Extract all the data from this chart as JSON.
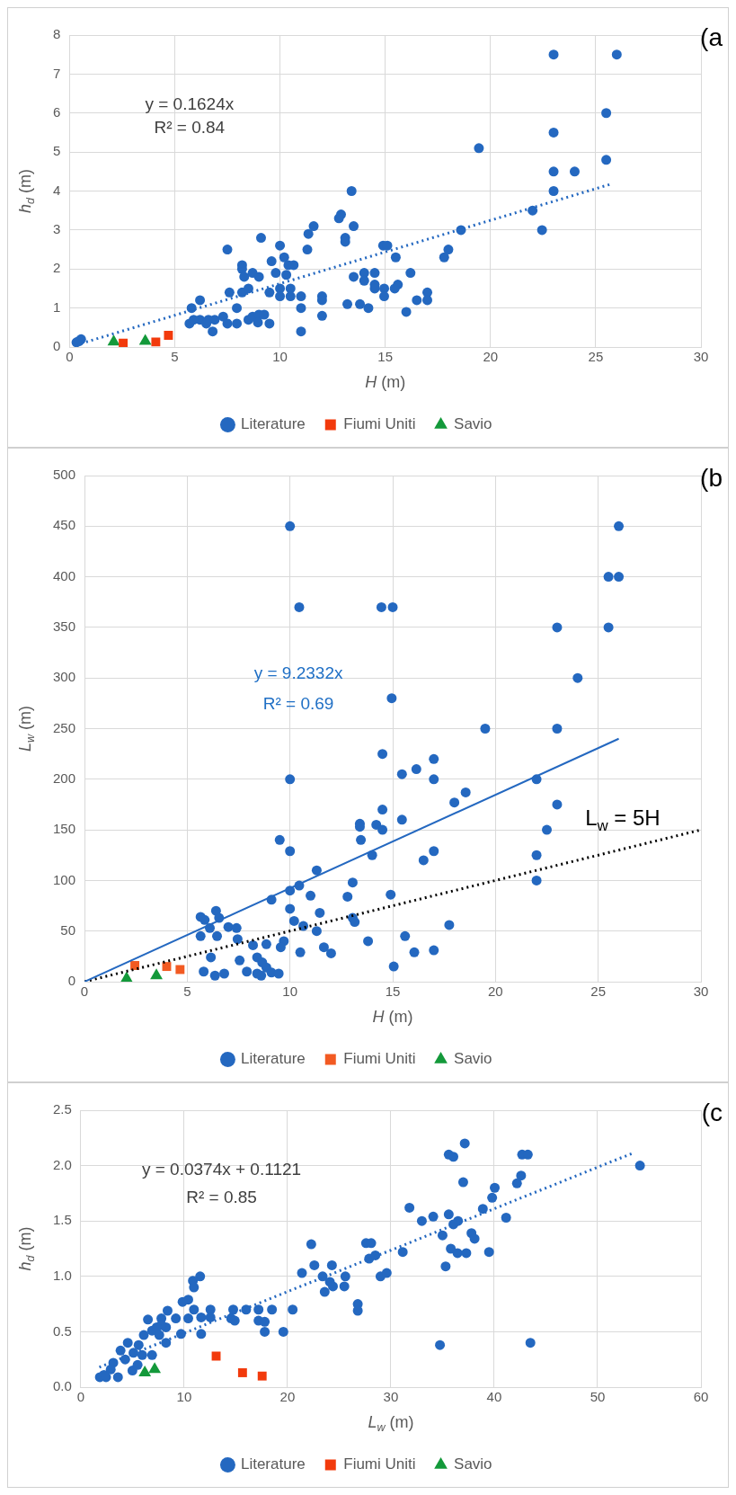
{
  "chart_data": [
    {
      "type": "scatter",
      "xlabel": "H (m)",
      "ylabel": "h$_{d}$ (m)",
      "xlim": [
        0,
        30
      ],
      "xticks": [
        0,
        5,
        10,
        15,
        20,
        25,
        30
      ],
      "ylim": [
        0,
        8
      ],
      "yticks": [
        0,
        1,
        2,
        3,
        4,
        5,
        6,
        7,
        8
      ],
      "grid": true,
      "legend": "bottom",
      "annotations": [
        "(a",
        "y = 0.1624x",
        "R² = 0.84"
      ],
      "series": [
        {
          "name": "Literature",
          "color": "#2468c0",
          "marker": "circle",
          "x": [
            23,
            26,
            25.5,
            23,
            19.45,
            25.5,
            23,
            24,
            23,
            13.4,
            22,
            22.45,
            18.6,
            12.9,
            12.8,
            13.1,
            13.1,
            13.5,
            11.6,
            11.35,
            11.3,
            9.1,
            7.5,
            10,
            14.9,
            15.1,
            18,
            17.8,
            15.5,
            10.2,
            9.6,
            8.2,
            8.2,
            10.4,
            10.65,
            8.3,
            8.7,
            9.0,
            9.8,
            10.3,
            14.0,
            14.5,
            16.2,
            13.5,
            14.0,
            14.5,
            14.5,
            14.95,
            15.6,
            15.45,
            7.6,
            8.2,
            8.5,
            9.5,
            10,
            10.5,
            10,
            10.5,
            11,
            12,
            12,
            14.95,
            17,
            17,
            16.5,
            5.8,
            6.2,
            7.95,
            11,
            13.2,
            13.8,
            14.2,
            16.0,
            12,
            11,
            6.8,
            9.5,
            5.7,
            6.2,
            6.5,
            6.6,
            7.3,
            7.5,
            7.95,
            8.5,
            8.7,
            9.0,
            9.25,
            8.95,
            6.9,
            5.9,
            0.33,
            0.55,
            0.45
          ],
          "values": [
            7.5,
            7.5,
            6.0,
            5.5,
            5.1,
            4.8,
            4.5,
            4.5,
            4.0,
            4.0,
            3.5,
            3.0,
            3.0,
            3.4,
            3.3,
            2.8,
            2.7,
            3.1,
            3.1,
            2.9,
            2.5,
            2.8,
            2.5,
            2.6,
            2.6,
            2.6,
            2.5,
            2.3,
            2.3,
            2.3,
            2.2,
            2.1,
            2.0,
            2.1,
            2.1,
            1.8,
            1.9,
            1.8,
            1.9,
            1.85,
            1.9,
            1.9,
            1.9,
            1.8,
            1.7,
            1.6,
            1.5,
            1.5,
            1.6,
            1.5,
            1.4,
            1.4,
            1.5,
            1.4,
            1.5,
            1.5,
            1.3,
            1.3,
            1.3,
            1.3,
            1.2,
            1.3,
            1.4,
            1.2,
            1.2,
            1.0,
            1.2,
            1.0,
            1.0,
            1.1,
            1.1,
            1.0,
            0.9,
            0.8,
            0.4,
            0.4,
            0.6,
            0.6,
            0.7,
            0.6,
            0.7,
            0.78,
            0.6,
            0.6,
            0.7,
            0.78,
            0.83,
            0.83,
            0.63,
            0.7,
            0.7,
            0.12,
            0.2,
            0.15
          ]
        },
        {
          "name": "Fiumi Uniti",
          "color": "#f23a0c",
          "marker": "square",
          "x": [
            2.55,
            4.1,
            4.7
          ],
          "values": [
            0.1,
            0.13,
            0.3
          ]
        },
        {
          "name": "Savio",
          "color": "#13993a",
          "marker": "triangle",
          "x": [
            2.1,
            3.6
          ],
          "values": [
            0.13,
            0.15
          ]
        },
        {
          "type": "line",
          "color": "#2468c0",
          "marker": "none",
          "line_style": "dotted",
          "x": [
            0.3,
            25.8
          ],
          "values": [
            0.05,
            4.19
          ]
        }
      ]
    },
    {
      "type": "scatter",
      "xlabel": "H (m)",
      "ylabel": "L$_{w}$ (m)",
      "xlim": [
        0,
        30
      ],
      "xticks": [
        0,
        5,
        10,
        15,
        20,
        25,
        30
      ],
      "ylim": [
        0,
        500
      ],
      "yticks": [
        0,
        50,
        100,
        150,
        200,
        250,
        300,
        350,
        400,
        450,
        500
      ],
      "grid": true,
      "legend": "bottom",
      "annotations": [
        "(b",
        "y = 9.2332x",
        "R² = 0.69",
        "L$_{w}$ = 5H"
      ],
      "series": [
        {
          "name": "Literature",
          "color": "#2468c0",
          "marker": "circle",
          "x": [
            10,
            26,
            25.5,
            26,
            10.45,
            14.45,
            15,
            23,
            25.5,
            24,
            14.95,
            19.5,
            23,
            14.5,
            17,
            16.15,
            15.45,
            10,
            17,
            22,
            18.55,
            18,
            23,
            14.5,
            15.45,
            22.5,
            13.4,
            13.4,
            14.2,
            14.5,
            9.5,
            13.45,
            10,
            17,
            14,
            16.5,
            22,
            22,
            11.3,
            13.05,
            10.45,
            10,
            11,
            12.8,
            14.9,
            9.1,
            10,
            11.45,
            10.2,
            13.05,
            13.15,
            10.65,
            11.3,
            17.75,
            13.8,
            15.6,
            17,
            16.05,
            15.05,
            10.5,
            11.65,
            12,
            9.7,
            9.55,
            5.65,
            5.85,
            6.4,
            6.55,
            5.65,
            6.1,
            6.45,
            7,
            7.4,
            7.45,
            6.15,
            5.8,
            6.35,
            6.8,
            7.55,
            8.2,
            8.4,
            8.85,
            7.9,
            8.4,
            8.65,
            8.85,
            9.1,
            9.45,
            8.6
          ],
          "values": [
            450,
            450,
            400,
            400,
            370,
            370,
            370,
            350,
            350,
            300,
            280,
            250,
            250,
            225,
            220,
            210,
            205,
            200,
            200,
            200,
            187,
            177,
            175,
            170,
            160,
            150,
            156,
            153,
            155,
            150,
            140,
            140,
            129,
            129,
            125,
            120,
            125,
            100,
            110,
            98,
            95,
            90,
            85,
            84,
            86,
            81,
            72,
            68,
            60,
            63,
            59,
            55,
            50,
            56,
            40,
            45,
            31,
            29,
            15,
            29,
            34,
            28,
            40,
            34,
            64,
            61,
            70,
            63,
            45,
            53,
            45,
            54,
            53,
            42,
            24,
            10,
            6,
            8,
            21,
            36,
            24,
            37,
            10,
            8,
            19,
            14,
            9,
            8,
            6
          ]
        },
        {
          "name": "Fiumi Uniti",
          "color": "#f25a22",
          "marker": "square",
          "x": [
            2.45,
            4.0,
            4.65
          ],
          "values": [
            16,
            15,
            12
          ]
        },
        {
          "name": "Savio",
          "color": "#13993a",
          "marker": "triangle",
          "x": [
            2.05,
            3.5
          ],
          "values": [
            3,
            6
          ]
        },
        {
          "type": "line",
          "color": "#2468c0",
          "marker": "none",
          "line_style": "solid",
          "x": [
            0,
            26
          ],
          "values": [
            0,
            240
          ]
        },
        {
          "type": "line",
          "color": "#000000",
          "marker": "none",
          "line_style": "dotted",
          "x": [
            0,
            30
          ],
          "values": [
            0,
            150
          ]
        }
      ]
    },
    {
      "type": "scatter",
      "xlabel": "L$_{w}$ (m)",
      "ylabel": "h$_{d}$ (m)",
      "xlim": [
        0,
        60
      ],
      "xticks": [
        0,
        10,
        20,
        30,
        40,
        50,
        60
      ],
      "ylim": [
        0,
        2.5
      ],
      "yticks": [
        {
          "value": 0,
          "label": "0.0"
        },
        {
          "value": 0.5,
          "label": "0.5"
        },
        {
          "value": 1,
          "label": "1.0"
        },
        {
          "value": 1.5,
          "label": "1.5"
        },
        {
          "value": 2,
          "label": "2.0"
        },
        {
          "value": 2.5,
          "label": "2.5"
        }
      ],
      "grid": true,
      "legend": "bottom",
      "annotations": [
        "(c",
        "y = 0.0374x + 0.1121",
        "R² = 0.85"
      ],
      "series": [
        {
          "name": "Literature",
          "color": "#2468c0",
          "marker": "circle",
          "x": [
            54.1,
            37.15,
            35.6,
            36.05,
            42.7,
            43.25,
            42.6,
            42.2,
            37,
            40.05,
            39.8,
            38.9,
            41.15,
            31.8,
            33,
            34.1,
            35.6,
            36.5,
            36.05,
            35,
            37.8,
            38.1,
            35.8,
            36.45,
            37.3,
            39.5,
            35.3,
            31.15,
            27.6,
            28.1,
            27.9,
            28.5,
            29,
            29.6,
            22.3,
            22.6,
            24.3,
            21.4,
            23.4,
            24.1,
            24.4,
            23.6,
            25.6,
            25.5,
            26.8,
            26.8,
            34.75,
            43.5,
            20.5,
            19.6,
            18.5,
            16,
            17.2,
            17.2,
            17.8,
            17.8,
            14.75,
            14.55,
            14.9,
            12.55,
            12.55,
            11.65,
            11.65,
            11.55,
            10.85,
            10.95,
            10.4,
            9.85,
            10.95,
            9.7,
            10.4,
            9.2,
            8.4,
            7.8,
            8.25,
            8.25,
            6.5,
            6.9,
            6.1,
            5.6,
            6.9,
            5.1,
            3.85,
            4.3,
            3.15,
            2.9,
            2.25,
            1.85,
            2.45,
            3.6,
            5.0,
            5.5,
            4.55,
            5.95,
            7.6,
            7.8,
            7.35
          ],
          "values": [
            2.0,
            2.2,
            2.1,
            2.08,
            2.1,
            2.1,
            1.91,
            1.84,
            1.85,
            1.8,
            1.71,
            1.61,
            1.53,
            1.62,
            1.5,
            1.54,
            1.56,
            1.5,
            1.47,
            1.37,
            1.39,
            1.34,
            1.25,
            1.21,
            1.21,
            1.22,
            1.09,
            1.22,
            1.3,
            1.3,
            1.16,
            1.19,
            1.0,
            1.03,
            1.29,
            1.1,
            1.1,
            1.03,
            1.0,
            0.95,
            0.91,
            0.86,
            1.0,
            0.91,
            0.75,
            0.69,
            0.38,
            0.4,
            0.7,
            0.5,
            0.7,
            0.7,
            0.7,
            0.6,
            0.59,
            0.5,
            0.7,
            0.62,
            0.6,
            0.7,
            0.63,
            0.63,
            0.48,
            1.0,
            0.96,
            0.9,
            0.79,
            0.77,
            0.7,
            0.48,
            0.62,
            0.62,
            0.69,
            0.62,
            0.54,
            0.4,
            0.61,
            0.51,
            0.47,
            0.38,
            0.29,
            0.31,
            0.33,
            0.25,
            0.22,
            0.16,
            0.11,
            0.09,
            0.09,
            0.09,
            0.15,
            0.2,
            0.4,
            0.29,
            0.47,
            0.56,
            0.54
          ]
        },
        {
          "name": "Fiumi Uniti",
          "color": "#f23a0c",
          "marker": "square",
          "x": [
            13.1,
            15.65,
            17.55
          ],
          "values": [
            0.28,
            0.13,
            0.1
          ]
        },
        {
          "name": "Savio",
          "color": "#13993a",
          "marker": "triangle",
          "x": [
            6.2,
            7.15
          ],
          "values": [
            0.13,
            0.16
          ]
        },
        {
          "type": "line",
          "color": "#2468c0",
          "marker": "none",
          "line_style": "dotted",
          "x": [
            1.8,
            53.6
          ],
          "values": [
            0.18,
            2.12
          ]
        }
      ]
    }
  ]
}
